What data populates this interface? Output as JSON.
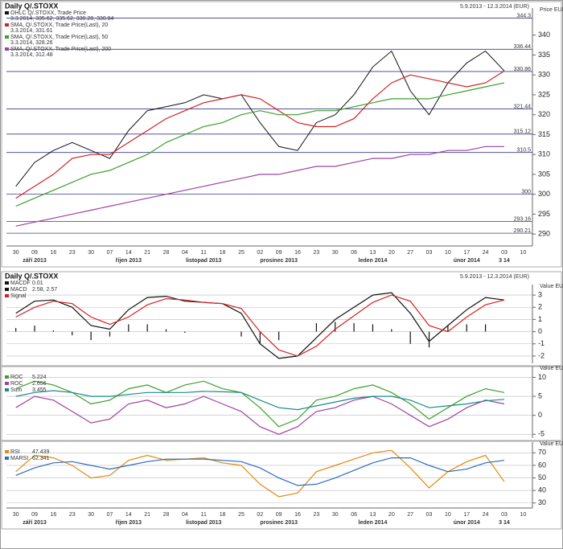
{
  "chart_data": [
    {
      "type": "line",
      "title": "Daily Q/.STOXX",
      "date_range": "5.9.2013 - 12.3.2014 (EUR)",
      "y_label": "Price EUR",
      "categories": [
        "30",
        "09",
        "16",
        "23",
        "30",
        "07",
        "14",
        "21",
        "28",
        "04",
        "11",
        "18",
        "25",
        "02",
        "09",
        "16",
        "23",
        "30",
        "06",
        "13",
        "20",
        "27",
        "03",
        "10",
        "17",
        "24",
        "03",
        "10"
      ],
      "month_labels": [
        null,
        "září 2013",
        null,
        null,
        null,
        null,
        "říjen 2013",
        null,
        null,
        null,
        "listopad 2013",
        null,
        null,
        null,
        "prosinec 2013",
        null,
        null,
        null,
        null,
        "leden 2014",
        null,
        null,
        null,
        null,
        "únor 2014",
        null,
        "3 14",
        null
      ],
      "ylim": [
        287,
        346
      ],
      "yticks": [
        290,
        295,
        300,
        305,
        310,
        315,
        320,
        325,
        330,
        335,
        340
      ],
      "grid": false,
      "hlines": [
        344.3,
        336.44,
        330.86,
        321.44,
        315.12,
        310.5,
        300,
        293.16,
        290.21
      ],
      "series": [
        {
          "name": "OHLC Q/.STOXX, Trade Price",
          "value_label": "3.3.2014, 335.62, 335.62, 330.28, 330.84",
          "color": "#111111",
          "values": [
            302,
            308,
            311,
            313,
            311,
            309,
            316,
            321,
            322,
            323,
            325,
            324,
            325,
            318,
            312,
            311,
            318,
            320,
            325,
            332,
            336,
            326,
            320,
            328,
            333,
            336,
            331,
            null
          ]
        },
        {
          "name": "SMA, Q/.STOXX, Trade Price(Last), 20",
          "value_label": "3.3.2014, 331.61",
          "color": "#d42020",
          "values": [
            299,
            302,
            305,
            309,
            310,
            310,
            313,
            316,
            319,
            321,
            323,
            324,
            325,
            324,
            321,
            318,
            317,
            317,
            319,
            324,
            328,
            330,
            329,
            328,
            327,
            328,
            331,
            null
          ]
        },
        {
          "name": "SMA, Q/.STOXX, Trade Price(Last), 50",
          "value_label": "3.3.2014, 328.26",
          "color": "#3aa02a",
          "values": [
            297,
            299,
            301,
            303,
            305,
            306,
            308,
            310,
            313,
            315,
            317,
            318,
            320,
            321,
            320,
            320,
            321,
            321,
            322,
            323,
            324,
            324,
            324,
            325,
            326,
            327,
            328,
            null
          ]
        },
        {
          "name": "SMA, Q/.STOXX, Trade Price(Last), 200",
          "value_label": "3.3.2014, 312.48",
          "color": "#a040a0",
          "values": [
            292,
            293,
            294,
            295,
            296,
            297,
            298,
            299,
            300,
            301,
            302,
            303,
            304,
            305,
            305,
            306,
            307,
            307,
            308,
            309,
            309,
            310,
            310,
            311,
            311,
            312,
            312,
            null
          ]
        }
      ]
    },
    {
      "type": "line",
      "title": "Daily Q/.STOXX",
      "date_range": "5.9.2013 - 12.3.2014 (EUR)",
      "y_label": "Value EUR",
      "ylim": [
        -2.6,
        3.6
      ],
      "yticks": [
        -2,
        -1,
        0,
        1,
        2,
        3
      ],
      "grid": true,
      "series": [
        {
          "name": "MACDF",
          "value_label": "0.01",
          "color": "#111111",
          "kind": "bar",
          "values": [
            0.3,
            0.5,
            0.1,
            -0.3,
            -0.7,
            -0.4,
            0.6,
            0.6,
            0.2,
            -0.1,
            0,
            0,
            -0.4,
            -1,
            -0.7,
            0,
            0.7,
            0.8,
            0.7,
            0.6,
            0.2,
            -1,
            -1.3,
            0.5,
            0.6,
            0.6,
            0,
            null
          ]
        },
        {
          "name": "MACD",
          "value_label": "2.58, 2.57",
          "color": "#111111",
          "values": [
            1.5,
            2.5,
            2.6,
            2.0,
            0.5,
            0.2,
            1.8,
            2.8,
            2.9,
            2.5,
            2.4,
            2.3,
            1.5,
            -1,
            -2.2,
            -2,
            -0.5,
            1,
            2,
            3,
            3.2,
            1.5,
            -0.8,
            0.5,
            1.8,
            2.8,
            2.6,
            null
          ]
        },
        {
          "name": "Signal",
          "color": "#d42020",
          "values": [
            1.2,
            2,
            2.5,
            2.3,
            1.2,
            0.6,
            1.2,
            2.2,
            2.7,
            2.6,
            2.4,
            2.3,
            1.9,
            0,
            -1.5,
            -2,
            -1.2,
            0.2,
            1.3,
            2.4,
            3,
            2.5,
            0.5,
            0,
            1.2,
            2.2,
            2.6,
            null
          ]
        }
      ]
    },
    {
      "type": "line",
      "y_label": "Value EUR",
      "ylim": [
        -6,
        12
      ],
      "yticks": [
        -5,
        0,
        5,
        10
      ],
      "grid": true,
      "series": [
        {
          "name": "ROC",
          "value_label": "5.224",
          "color": "#3aa02a",
          "values": [
            7,
            9,
            8,
            6,
            3,
            4,
            7,
            8,
            6,
            8,
            9,
            7,
            6,
            2,
            -3,
            -1,
            4,
            5,
            7,
            8,
            6,
            3,
            -1,
            2,
            5,
            7,
            6,
            null
          ]
        },
        {
          "name": "ROC",
          "value_label": "2.656",
          "color": "#a040a0",
          "values": [
            2,
            5,
            4,
            1,
            -2,
            -1,
            3,
            4,
            2,
            3,
            5,
            3,
            1,
            -3,
            -5,
            -3,
            1,
            2,
            4,
            5,
            3,
            0,
            -3,
            -1,
            2,
            4,
            3,
            null
          ]
        },
        {
          "name": "Sum",
          "value_label": "3.455",
          "color": "#1a8a8a",
          "values": [
            5,
            6,
            6.5,
            6,
            5,
            5,
            5.5,
            6,
            6,
            6,
            6.3,
            6.2,
            6,
            4,
            2,
            1.5,
            2.5,
            3.5,
            4.5,
            5,
            5,
            4,
            2,
            2.5,
            3,
            3.8,
            4.2,
            null
          ]
        }
      ]
    },
    {
      "type": "line",
      "y_label": "Value EUR",
      "categories": [
        "30",
        "09",
        "16",
        "23",
        "30",
        "07",
        "14",
        "21",
        "28",
        "04",
        "11",
        "18",
        "25",
        "02",
        "09",
        "16",
        "23",
        "30",
        "06",
        "13",
        "20",
        "27",
        "03",
        "10",
        "17",
        "24",
        "03",
        "10"
      ],
      "month_labels": [
        null,
        "září 2013",
        null,
        null,
        null,
        null,
        "říjen 2013",
        null,
        null,
        null,
        "listopad 2013",
        null,
        null,
        null,
        "prosinec 2013",
        null,
        null,
        null,
        null,
        "leden 2014",
        null,
        null,
        null,
        null,
        "únor 2014",
        null,
        "3 14",
        null
      ],
      "ylim": [
        26,
        76
      ],
      "yticks": [
        30,
        40,
        50,
        60,
        70
      ],
      "grid": true,
      "series": [
        {
          "name": "RSI",
          "value_label": "47.439",
          "color": "#e08a10",
          "values": [
            55,
            68,
            66,
            60,
            50,
            52,
            64,
            68,
            64,
            65,
            66,
            62,
            60,
            45,
            35,
            38,
            55,
            60,
            65,
            70,
            72,
            58,
            42,
            55,
            63,
            68,
            47,
            null
          ]
        },
        {
          "name": "MARSI",
          "value_label": "62.341",
          "color": "#2a6ac0",
          "values": [
            52,
            58,
            62,
            63,
            60,
            57,
            60,
            63,
            65,
            65,
            65,
            64,
            63,
            58,
            50,
            44,
            45,
            50,
            56,
            62,
            66,
            66,
            60,
            55,
            57,
            62,
            64,
            null
          ]
        }
      ]
    }
  ]
}
